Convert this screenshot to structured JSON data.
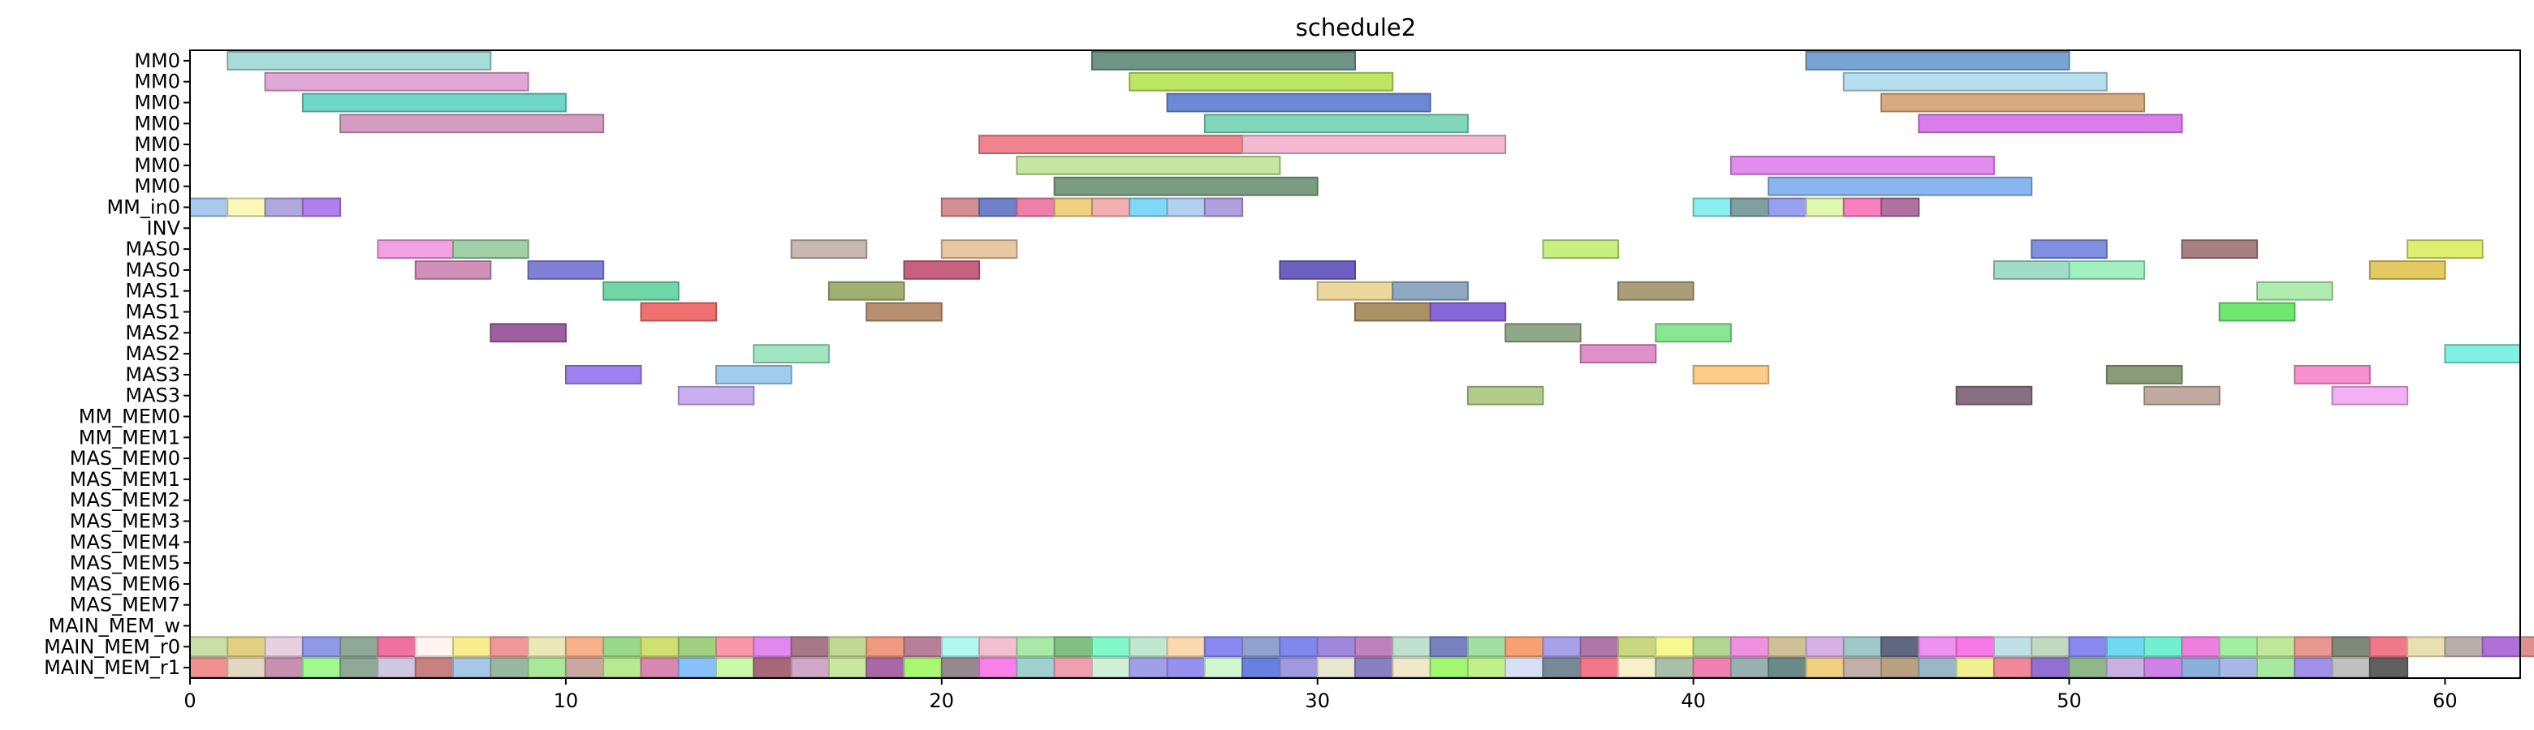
{
  "chart_data": {
    "type": "gantt",
    "title": "schedule2",
    "xlim": [
      0,
      62
    ],
    "xticks": [
      0,
      10,
      20,
      30,
      40,
      50,
      60
    ],
    "rows": [
      "MM0",
      "MM0",
      "MM0",
      "MM0",
      "MM0",
      "MM0",
      "MM0",
      "MM_in0",
      "INV",
      "MAS0",
      "MAS0",
      "MAS1",
      "MAS1",
      "MAS2",
      "MAS2",
      "MAS3",
      "MAS3",
      "MM_MEM0",
      "MM_MEM1",
      "MAS_MEM0",
      "MAS_MEM1",
      "MAS_MEM2",
      "MAS_MEM3",
      "MAS_MEM4",
      "MAS_MEM5",
      "MAS_MEM6",
      "MAS_MEM7",
      "MAIN_MEM_w",
      "MAIN_MEM_r0",
      "MAIN_MEM_r1"
    ],
    "bars": [
      {
        "row": 0,
        "start": 1,
        "end": 8,
        "color": "#a8dcd8"
      },
      {
        "row": 0,
        "start": 24,
        "end": 31,
        "color": "#6e9486"
      },
      {
        "row": 0,
        "start": 43,
        "end": 50,
        "color": "#78a6d4"
      },
      {
        "row": 1,
        "start": 2,
        "end": 9,
        "color": "#e0a8d6"
      },
      {
        "row": 1,
        "start": 25,
        "end": 32,
        "color": "#bde662"
      },
      {
        "row": 1,
        "start": 44,
        "end": 51,
        "color": "#b6dff0"
      },
      {
        "row": 2,
        "start": 3,
        "end": 10,
        "color": "#6fd6c8"
      },
      {
        "row": 2,
        "start": 26,
        "end": 33,
        "color": "#6a8ad6"
      },
      {
        "row": 2,
        "start": 45,
        "end": 52,
        "color": "#d8aa80"
      },
      {
        "row": 3,
        "start": 4,
        "end": 11,
        "color": "#d49cc0"
      },
      {
        "row": 3,
        "start": 27,
        "end": 34,
        "color": "#80d8b8"
      },
      {
        "row": 3,
        "start": 46,
        "end": 53,
        "color": "#d97cec"
      },
      {
        "row": 4,
        "start": 21,
        "end": 28,
        "color": "#f0838f"
      },
      {
        "row": 4,
        "start": 28,
        "end": 35,
        "color": "#f4b8d0"
      },
      {
        "row": 5,
        "start": 22,
        "end": 29,
        "color": "#c4e6a0"
      },
      {
        "row": 5,
        "start": 41,
        "end": 48,
        "color": "#e28cee"
      },
      {
        "row": 6,
        "start": 23,
        "end": 30,
        "color": "#7a9c80"
      },
      {
        "row": 6,
        "start": 42,
        "end": 49,
        "color": "#88b6f0"
      },
      {
        "row": 7,
        "start": 0,
        "end": 1,
        "color": "#a8c8ec"
      },
      {
        "row": 7,
        "start": 1,
        "end": 2,
        "color": "#fcf8b8"
      },
      {
        "row": 7,
        "start": 2,
        "end": 3,
        "color": "#b0a8dc"
      },
      {
        "row": 7,
        "start": 3,
        "end": 4,
        "color": "#b080ec"
      },
      {
        "row": 7,
        "start": 20,
        "end": 21,
        "color": "#d49090"
      },
      {
        "row": 7,
        "start": 21,
        "end": 22,
        "color": "#7080c8"
      },
      {
        "row": 7,
        "start": 22,
        "end": 23,
        "color": "#ec80a8"
      },
      {
        "row": 7,
        "start": 23,
        "end": 24,
        "color": "#eed080"
      },
      {
        "row": 7,
        "start": 24,
        "end": 25,
        "color": "#f4b0b0"
      },
      {
        "row": 7,
        "start": 25,
        "end": 26,
        "color": "#80d8f8"
      },
      {
        "row": 7,
        "start": 26,
        "end": 27,
        "color": "#b4d0f0"
      },
      {
        "row": 7,
        "start": 27,
        "end": 28,
        "color": "#b0a0e0"
      },
      {
        "row": 7,
        "start": 40,
        "end": 41,
        "color": "#88eef0"
      },
      {
        "row": 7,
        "start": 41,
        "end": 42,
        "color": "#80a0a0"
      },
      {
        "row": 7,
        "start": 42,
        "end": 43,
        "color": "#9aa0f0"
      },
      {
        "row": 7,
        "start": 43,
        "end": 44,
        "color": "#e0f8b0"
      },
      {
        "row": 7,
        "start": 44,
        "end": 45,
        "color": "#f880c0"
      },
      {
        "row": 7,
        "start": 45,
        "end": 46,
        "color": "#b070a0"
      },
      {
        "row": 9,
        "start": 5,
        "end": 7,
        "color": "#f4a0e4"
      },
      {
        "row": 9,
        "start": 7,
        "end": 9,
        "color": "#a0d0a8"
      },
      {
        "row": 9,
        "start": 16,
        "end": 18,
        "color": "#c8b8b0"
      },
      {
        "row": 9,
        "start": 20,
        "end": 22,
        "color": "#e8c8a0"
      },
      {
        "row": 9,
        "start": 36,
        "end": 38,
        "color": "#c8f080"
      },
      {
        "row": 9,
        "start": 49,
        "end": 51,
        "color": "#8090e0"
      },
      {
        "row": 9,
        "start": 53,
        "end": 55,
        "color": "#a88080"
      },
      {
        "row": 9,
        "start": 59,
        "end": 61,
        "color": "#e0ee70"
      },
      {
        "row": 10,
        "start": 6,
        "end": 8,
        "color": "#d090b8"
      },
      {
        "row": 10,
        "start": 9,
        "end": 11,
        "color": "#8080d8"
      },
      {
        "row": 10,
        "start": 19,
        "end": 21,
        "color": "#c86080"
      },
      {
        "row": 10,
        "start": 29,
        "end": 31,
        "color": "#6e60c0"
      },
      {
        "row": 10,
        "start": 48,
        "end": 50,
        "color": "#a0dcc8"
      },
      {
        "row": 10,
        "start": 50,
        "end": 52,
        "color": "#a0f0c0"
      },
      {
        "row": 10,
        "start": 58,
        "end": 60,
        "color": "#e4c860"
      },
      {
        "row": 11,
        "start": 11,
        "end": 13,
        "color": "#70d8a8"
      },
      {
        "row": 11,
        "start": 17,
        "end": 19,
        "color": "#a0b070"
      },
      {
        "row": 11,
        "start": 30,
        "end": 32,
        "color": "#ecd89a"
      },
      {
        "row": 11,
        "start": 32,
        "end": 34,
        "color": "#90a8c0"
      },
      {
        "row": 11,
        "start": 38,
        "end": 40,
        "color": "#a89e78"
      },
      {
        "row": 11,
        "start": 55,
        "end": 57,
        "color": "#b0ecb0"
      },
      {
        "row": 12,
        "start": 12,
        "end": 14,
        "color": "#f07070"
      },
      {
        "row": 12,
        "start": 18,
        "end": 20,
        "color": "#b89070"
      },
      {
        "row": 12,
        "start": 31,
        "end": 33,
        "color": "#ac9066"
      },
      {
        "row": 12,
        "start": 33,
        "end": 35,
        "color": "#8868d8"
      },
      {
        "row": 12,
        "start": 54,
        "end": 56,
        "color": "#70e870"
      },
      {
        "row": 13,
        "start": 8,
        "end": 10,
        "color": "#9c60a0"
      },
      {
        "row": 13,
        "start": 35,
        "end": 37,
        "color": "#90a888"
      },
      {
        "row": 13,
        "start": 39,
        "end": 41,
        "color": "#88e890"
      },
      {
        "row": 14,
        "start": 15,
        "end": 17,
        "color": "#a0e6c0"
      },
      {
        "row": 14,
        "start": 37,
        "end": 39,
        "color": "#e090c8"
      },
      {
        "row": 14,
        "start": 60,
        "end": 62,
        "color": "#80f0e0"
      },
      {
        "row": 15,
        "start": 10,
        "end": 12,
        "color": "#a080f0"
      },
      {
        "row": 15,
        "start": 14,
        "end": 16,
        "color": "#a0ccf0"
      },
      {
        "row": 15,
        "start": 40,
        "end": 42,
        "color": "#fccc88"
      },
      {
        "row": 15,
        "start": 51,
        "end": 53,
        "color": "#889c78"
      },
      {
        "row": 15,
        "start": 56,
        "end": 58,
        "color": "#f890d0"
      },
      {
        "row": 16,
        "start": 13,
        "end": 15,
        "color": "#c8b0f0"
      },
      {
        "row": 16,
        "start": 34,
        "end": 36,
        "color": "#b0cc88"
      },
      {
        "row": 16,
        "start": 47,
        "end": 49,
        "color": "#887080"
      },
      {
        "row": 16,
        "start": 52,
        "end": 54,
        "color": "#c0aaa0"
      },
      {
        "row": 16,
        "start": 57,
        "end": 59,
        "color": "#f4b0f4"
      }
    ],
    "mem_colors_r0": [
      "#c8e0a8",
      "#e0d080",
      "#e8d0e0",
      "#9098e8",
      "#90a898",
      "#f070a0",
      "#fff4f0",
      "#f8ee90",
      "#f09898",
      "#e8e8b8",
      "#f8b088",
      "#98d888",
      "#d0e070",
      "#a0d080",
      "#f898a8",
      "#e088f0",
      "#a87888",
      "#c0d890",
      "#f09880",
      "#b88098",
      "#b0f8f0",
      "#f0c0d0",
      "#a8e8a8",
      "#80c080",
      "#80f8c8",
      "#c0e8d0",
      "#fcd8b0",
      "#8888f0",
      "#90a0d0",
      "#8088f0",
      "#a088e0",
      "#c080c0",
      "#c0e0d0",
      "#7880c0",
      "#a0e0a0",
      "#f8a070",
      "#a8a0e8",
      "#b078a8",
      "#c8d880",
      "#f8f890",
      "#b0d890",
      "#f090e0",
      "#d0c098",
      "#d8b0e8",
      "#a0c8c8",
      "#606880",
      "#f090f0",
      "#f878e8",
      "#c0e0e8",
      "#c0d8c0",
      "#8888f0",
      "#70d8f0",
      "#70f0d0",
      "#f080e0",
      "#a0f0a0",
      "#c0e898",
      "#e89890",
      "#808878",
      "#f07888",
      "#e8e0b0",
      "#b8b0a8",
      "#b070d8",
      "#e09090"
    ],
    "mem_colors_r1": [
      "#f09090",
      "#e0d8c0",
      "#c890b0",
      "#a0f890",
      "#90a898",
      "#d0c8e0",
      "#c88080",
      "#a8c8e8",
      "#98b8a0",
      "#a8e898",
      "#c8a8a0",
      "#b8e890",
      "#d888b0",
      "#88c0f8",
      "#c8f8a8",
      "#a86878",
      "#d0a8c8",
      "#c8e8a0",
      "#a868a8",
      "#a8f870",
      "#988890",
      "#f880e8",
      "#a0d0d0",
      "#f0a0b0",
      "#d0f0d8",
      "#a0a0e8",
      "#9890f0",
      "#d0f8d0",
      "#6880e0",
      "#a098e0",
      "#e8e8d0",
      "#8880c0",
      "#f0e8c8",
      "#a0f870",
      "#c0f088",
      "#d8e0f8",
      "#788898",
      "#f07888",
      "#f8f0c8",
      "#a8c0a8",
      "#f080b0",
      "#98b0b0",
      "#6a8a88",
      "#f0d080",
      "#c0b0a8",
      "#b8a080",
      "#98b8c8",
      "#f0f090",
      "#f08898",
      "#9070d0",
      "#90b888",
      "#c8b0e0",
      "#d080e8",
      "#88b0d8",
      "#a8b8e8",
      "#a8e8a0",
      "#a090e8",
      "#c0c0c0",
      "#606060"
    ]
  }
}
